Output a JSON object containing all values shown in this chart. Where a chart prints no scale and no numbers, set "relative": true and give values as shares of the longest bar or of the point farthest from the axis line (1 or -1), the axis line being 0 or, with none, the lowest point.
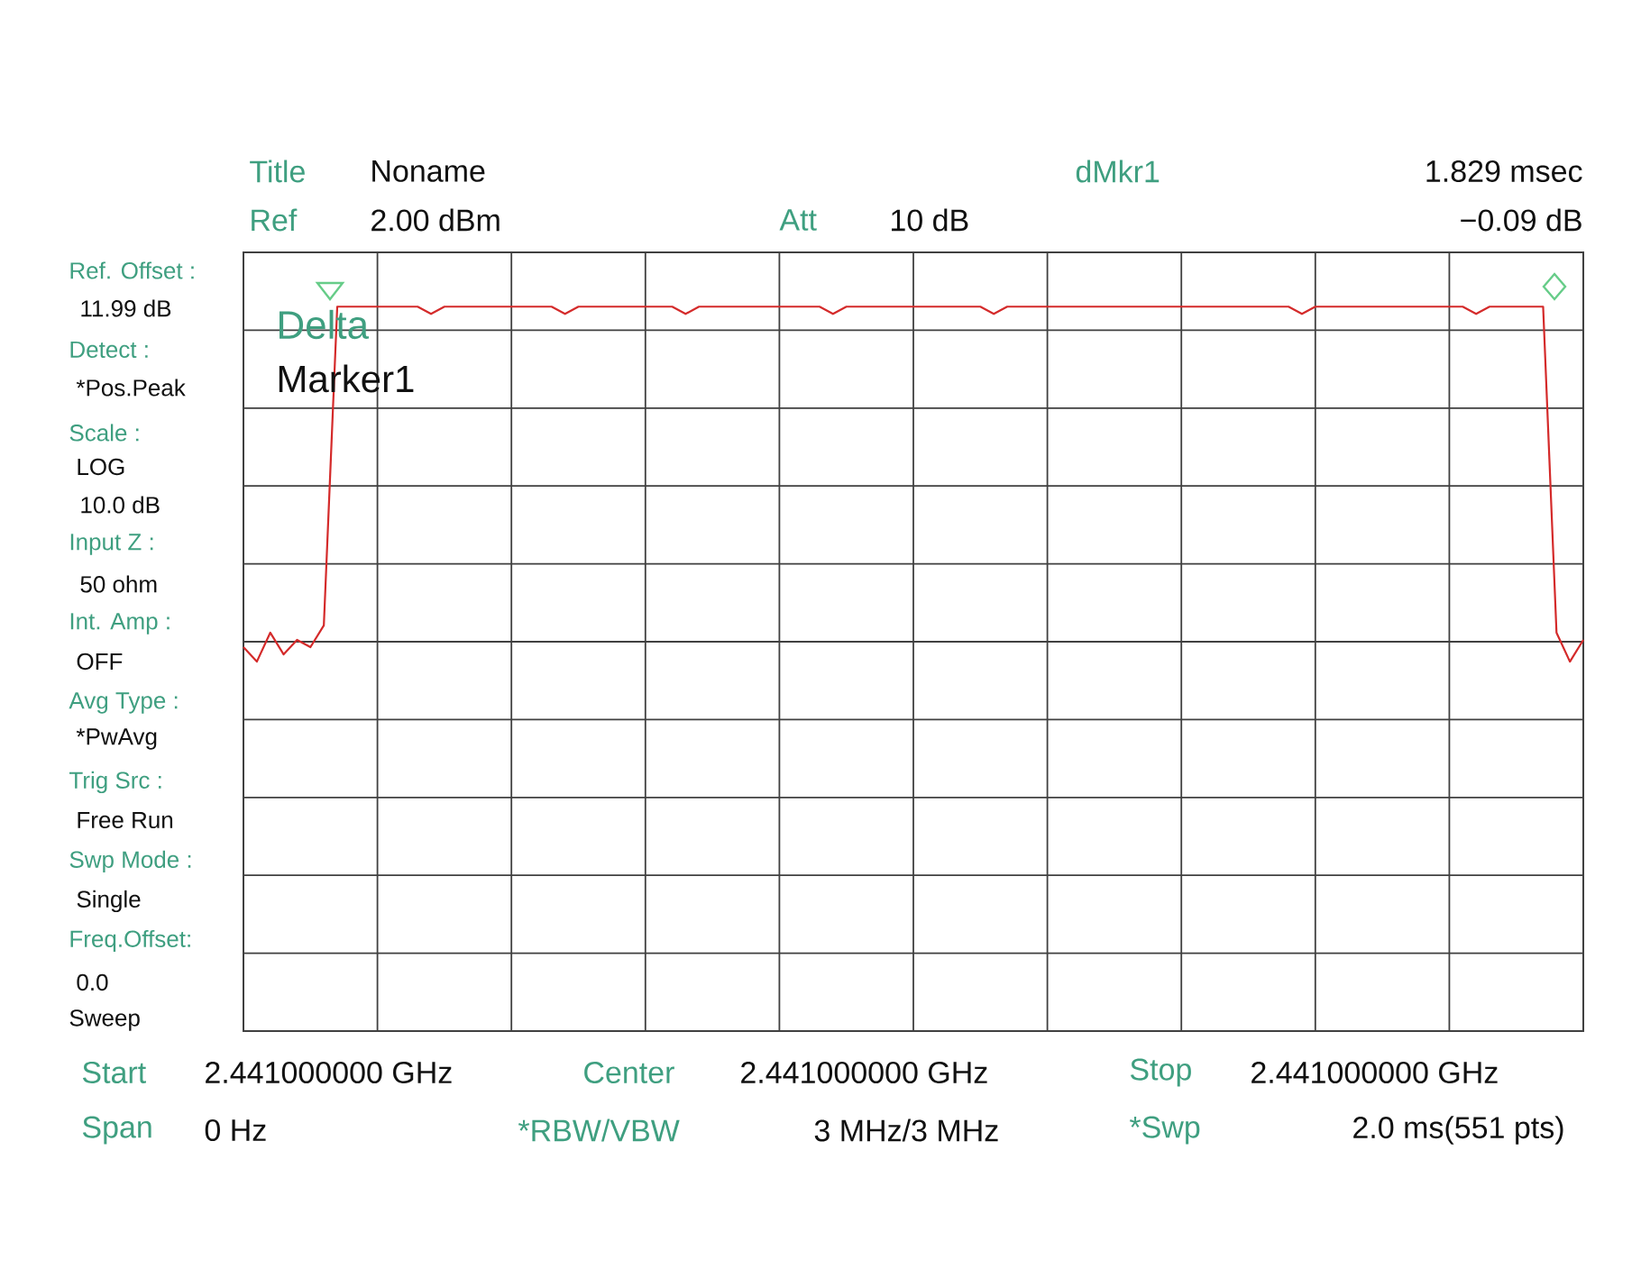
{
  "chart_data": {
    "type": "line",
    "relative": true,
    "grid": true,
    "tick_labels": false,
    "categories": [
      null,
      null,
      null,
      null,
      null,
      null,
      null,
      null,
      null,
      null,
      null,
      null,
      null,
      null,
      null,
      null,
      null,
      null,
      null,
      null,
      null,
      null,
      null,
      null,
      null,
      null,
      null,
      null,
      null,
      null,
      null,
      null,
      null,
      null,
      null,
      null,
      null,
      null,
      null,
      null,
      null,
      null,
      null,
      null,
      null,
      null,
      null,
      null,
      null,
      null,
      null,
      null,
      null,
      null,
      null,
      null,
      null,
      null,
      null,
      null,
      null,
      null,
      null,
      null,
      null,
      null,
      null,
      null,
      null,
      null,
      null,
      null,
      null,
      null,
      null,
      null,
      null,
      null,
      null,
      null,
      null,
      null,
      null,
      null,
      null,
      null,
      null,
      null,
      null,
      null,
      null,
      null,
      null,
      null,
      null,
      null,
      null,
      null,
      null,
      null,
      null
    ],
    "series": [
      {
        "color": "#d42a2a",
        "values": [
          0.53,
          0.51,
          0.55,
          0.52,
          0.54,
          0.53,
          0.56,
          1,
          1,
          1,
          1,
          1,
          1,
          1,
          0.99,
          1,
          1,
          1,
          1,
          1,
          1,
          1,
          1,
          1,
          0.99,
          1,
          1,
          1,
          1,
          1,
          1,
          1,
          1,
          0.99,
          1,
          1,
          1,
          1,
          1,
          1,
          1,
          1,
          1,
          1,
          0.99,
          1,
          1,
          1,
          1,
          1,
          1,
          1,
          1,
          1,
          1,
          1,
          0.99,
          1,
          1,
          1,
          1,
          1,
          1,
          1,
          1,
          1,
          1,
          1,
          1,
          1,
          1,
          1,
          1,
          1,
          1,
          1,
          1,
          1,
          1,
          0.99,
          1,
          1,
          1,
          1,
          1,
          1,
          1,
          1,
          1,
          1,
          1,
          1,
          0.99,
          1,
          1,
          1,
          1,
          1,
          0.55,
          0.51,
          0.54
        ]
      }
    ],
    "annotations": [
      "Title",
      "Noname",
      "Ref",
      "2.00 dBm",
      "Att",
      "10 dB",
      "dMkr1",
      "1.829 msec",
      "−0.09 dB",
      "Ref. Offset :",
      "11.99 dB",
      "Detect :",
      "*Pos.Peak",
      "Scale :",
      "LOG",
      "10.0 dB",
      "Input Z :",
      "50 ohm",
      "Int. Amp :",
      "OFF",
      "Avg Type :",
      "*PwAvg",
      "Trig Src :",
      "Free Run",
      "Swp Mode :",
      "Single",
      "Freq.Offset:",
      "0.0",
      "Sweep",
      "Start",
      "2.441000000 GHz",
      "Center",
      "2.441000000 GHz",
      "Stop",
      "2.441000000 GHz",
      "Span",
      "0 Hz",
      "*RBW/VBW",
      "3 MHz/3 MHz",
      "*Swp",
      "2.0 ms(551 pts)",
      "Delta",
      "Marker1"
    ]
  }
}
